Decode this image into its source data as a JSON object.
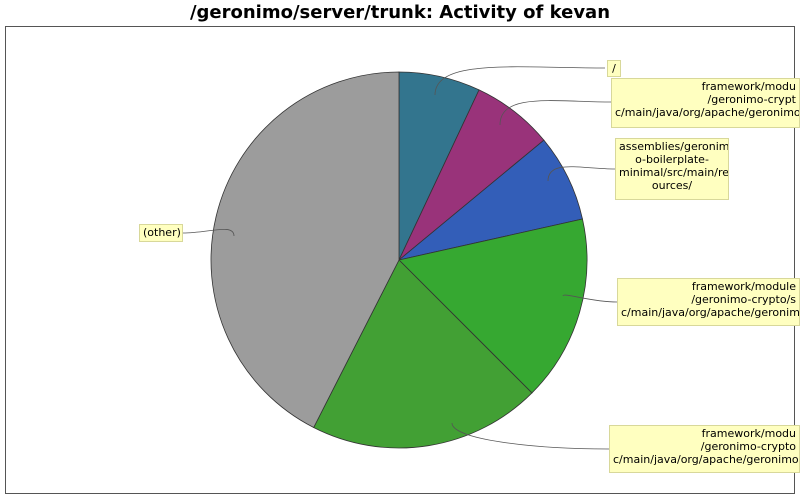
{
  "title": "/geronimo/server/trunk: Activity of kevan",
  "chart_data": {
    "type": "pie",
    "title": "/geronimo/server/trunk: Activity of kevan",
    "slices": [
      {
        "label_lines": [
          "/"
        ],
        "value": 7,
        "color": "#33758e"
      },
      {
        "label_lines": [
          "framework/modu",
          "/geronimo-crypt",
          "c/main/java/org/apache/geronimo"
        ],
        "value": 7,
        "color": "#99337a"
      },
      {
        "label_lines": [
          "assemblies/geronim",
          "o-boilerplate-",
          "minimal/src/main/res",
          "ources/"
        ],
        "value": 7.5,
        "color": "#335eb8"
      },
      {
        "label_lines": [
          "framework/module",
          "/geronimo-crypto/s",
          "c/main/java/org/apache/geronimo"
        ],
        "value": 16,
        "color": "#36a831"
      },
      {
        "label_lines": [
          "framework/modu",
          "/geronimo-crypto",
          "c/main/java/org/apache/geronimo"
        ],
        "value": 20,
        "color": "#42a034"
      },
      {
        "label_lines": [
          "(other)"
        ],
        "value": 42.5,
        "color": "#9c9c9c"
      }
    ]
  }
}
